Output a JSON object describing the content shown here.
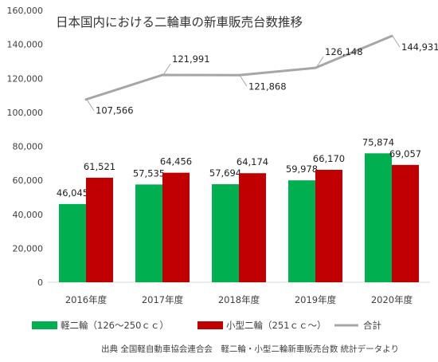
{
  "chart_data": {
    "type": "bar",
    "title": "日本国内における二輪車の新車販売台数推移",
    "categories": [
      "2016年度",
      "2017年度",
      "2018年度",
      "2019年度",
      "2020年度"
    ],
    "series": [
      {
        "name": "軽二輪（126〜250ｃｃ）",
        "type": "bar",
        "values": [
          46045,
          57535,
          57694,
          59978,
          75874
        ],
        "labels": [
          "46,045",
          "57,535",
          "57,694",
          "59,978",
          "75,874"
        ],
        "color": "#00b050"
      },
      {
        "name": "小型二輪（251ｃｃ〜）",
        "type": "bar",
        "values": [
          61521,
          64456,
          64174,
          66170,
          69057
        ],
        "labels": [
          "61,521",
          "64,456",
          "64,174",
          "66,170",
          "69,057"
        ],
        "color": "#c00000"
      },
      {
        "name": "合計",
        "type": "line",
        "values": [
          107566,
          121991,
          121868,
          126148,
          144931
        ],
        "labels": [
          "107,566",
          "121,991",
          "121,868",
          "126,148",
          "144,931"
        ],
        "color": "#a6a6a6"
      }
    ],
    "ylim": [
      0,
      160000
    ],
    "yticks": [
      0,
      20000,
      40000,
      60000,
      80000,
      100000,
      120000,
      140000,
      160000
    ],
    "ytick_labels": [
      "0",
      "20,000",
      "40,000",
      "60,000",
      "80,000",
      "100,000",
      "120,000",
      "140,000",
      "160,000"
    ],
    "grid": false,
    "legend_position": "bottom"
  },
  "source_note": "出典 全国軽自動車協会連合会　軽二輪・小型二輪新車販売台数 統計データより"
}
